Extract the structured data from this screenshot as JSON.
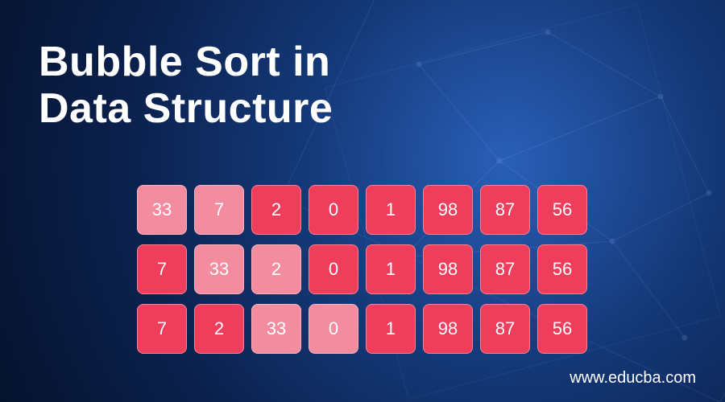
{
  "title_line1": "Bubble Sort in",
  "title_line2": "Data Structure",
  "site_url": "www.educba.com",
  "colors": {
    "cell_normal": "#ef3e5b",
    "cell_highlight": "#f48ca0",
    "cell_text": "#ffffff",
    "title_text": "#ffffff"
  },
  "cell": {
    "size": 62,
    "radius": 8,
    "gap": 9,
    "row_gap": 12,
    "fontsize": 22
  },
  "rows": [
    {
      "values": [
        33,
        7,
        2,
        0,
        1,
        98,
        87,
        56
      ],
      "highlight": [
        true,
        true,
        false,
        false,
        false,
        false,
        false,
        false
      ]
    },
    {
      "values": [
        7,
        33,
        2,
        0,
        1,
        98,
        87,
        56
      ],
      "highlight": [
        false,
        true,
        true,
        false,
        false,
        false,
        false,
        false
      ]
    },
    {
      "values": [
        7,
        2,
        33,
        0,
        1,
        98,
        87,
        56
      ],
      "highlight": [
        false,
        false,
        true,
        true,
        false,
        false,
        false,
        false
      ]
    }
  ]
}
